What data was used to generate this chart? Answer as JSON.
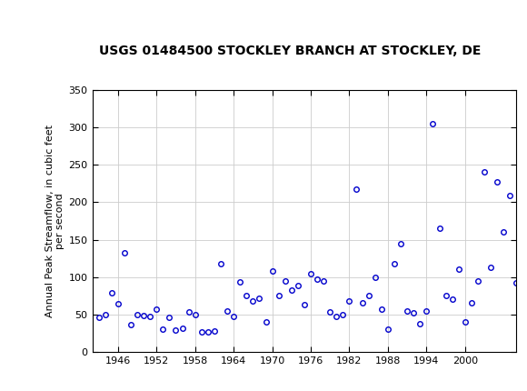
{
  "title": "USGS 01484500 STOCKLEY BRANCH AT STOCKLEY, DE",
  "ylabel": "Annual Peak Streamflow, in cubic feet\nper second",
  "xlabel": "",
  "header_color": "#1a6b3c",
  "xlim": [
    1942,
    2008
  ],
  "ylim": [
    0,
    350
  ],
  "yticks": [
    0,
    50,
    100,
    150,
    200,
    250,
    300,
    350
  ],
  "xticks": [
    1946,
    1952,
    1958,
    1964,
    1970,
    1976,
    1982,
    1988,
    1994,
    2000
  ],
  "marker_color": "#0000cc",
  "marker_facecolor": "none",
  "marker_style": "o",
  "marker_size": 4,
  "marker_edgewidth": 1.0,
  "grid_color": "#cccccc",
  "title_fontsize": 10,
  "ylabel_fontsize": 8,
  "tick_labelsize": 8,
  "data": [
    [
      1943,
      46
    ],
    [
      1944,
      50
    ],
    [
      1945,
      79
    ],
    [
      1946,
      64
    ],
    [
      1947,
      133
    ],
    [
      1948,
      36
    ],
    [
      1949,
      50
    ],
    [
      1950,
      48
    ],
    [
      1951,
      47
    ],
    [
      1952,
      57
    ],
    [
      1953,
      30
    ],
    [
      1954,
      46
    ],
    [
      1955,
      29
    ],
    [
      1956,
      31
    ],
    [
      1957,
      53
    ],
    [
      1958,
      50
    ],
    [
      1959,
      27
    ],
    [
      1960,
      27
    ],
    [
      1961,
      28
    ],
    [
      1962,
      118
    ],
    [
      1963,
      55
    ],
    [
      1964,
      47
    ],
    [
      1965,
      93
    ],
    [
      1966,
      75
    ],
    [
      1967,
      68
    ],
    [
      1968,
      72
    ],
    [
      1969,
      40
    ],
    [
      1970,
      108
    ],
    [
      1971,
      75
    ],
    [
      1972,
      95
    ],
    [
      1973,
      83
    ],
    [
      1974,
      89
    ],
    [
      1975,
      63
    ],
    [
      1976,
      105
    ],
    [
      1977,
      97
    ],
    [
      1978,
      95
    ],
    [
      1979,
      53
    ],
    [
      1980,
      47
    ],
    [
      1981,
      50
    ],
    [
      1982,
      68
    ],
    [
      1983,
      218
    ],
    [
      1984,
      65
    ],
    [
      1985,
      75
    ],
    [
      1986,
      100
    ],
    [
      1987,
      57
    ],
    [
      1988,
      30
    ],
    [
      1989,
      118
    ],
    [
      1990,
      145
    ],
    [
      1991,
      55
    ],
    [
      1992,
      52
    ],
    [
      1993,
      38
    ],
    [
      1994,
      55
    ],
    [
      1995,
      305
    ],
    [
      1996,
      165
    ],
    [
      1997,
      75
    ],
    [
      1998,
      70
    ],
    [
      1999,
      110
    ],
    [
      2000,
      40
    ],
    [
      2001,
      65
    ],
    [
      2002,
      95
    ],
    [
      2003,
      240
    ],
    [
      2004,
      113
    ],
    [
      2005,
      227
    ],
    [
      2006,
      160
    ],
    [
      2007,
      209
    ],
    [
      2008,
      92
    ]
  ]
}
